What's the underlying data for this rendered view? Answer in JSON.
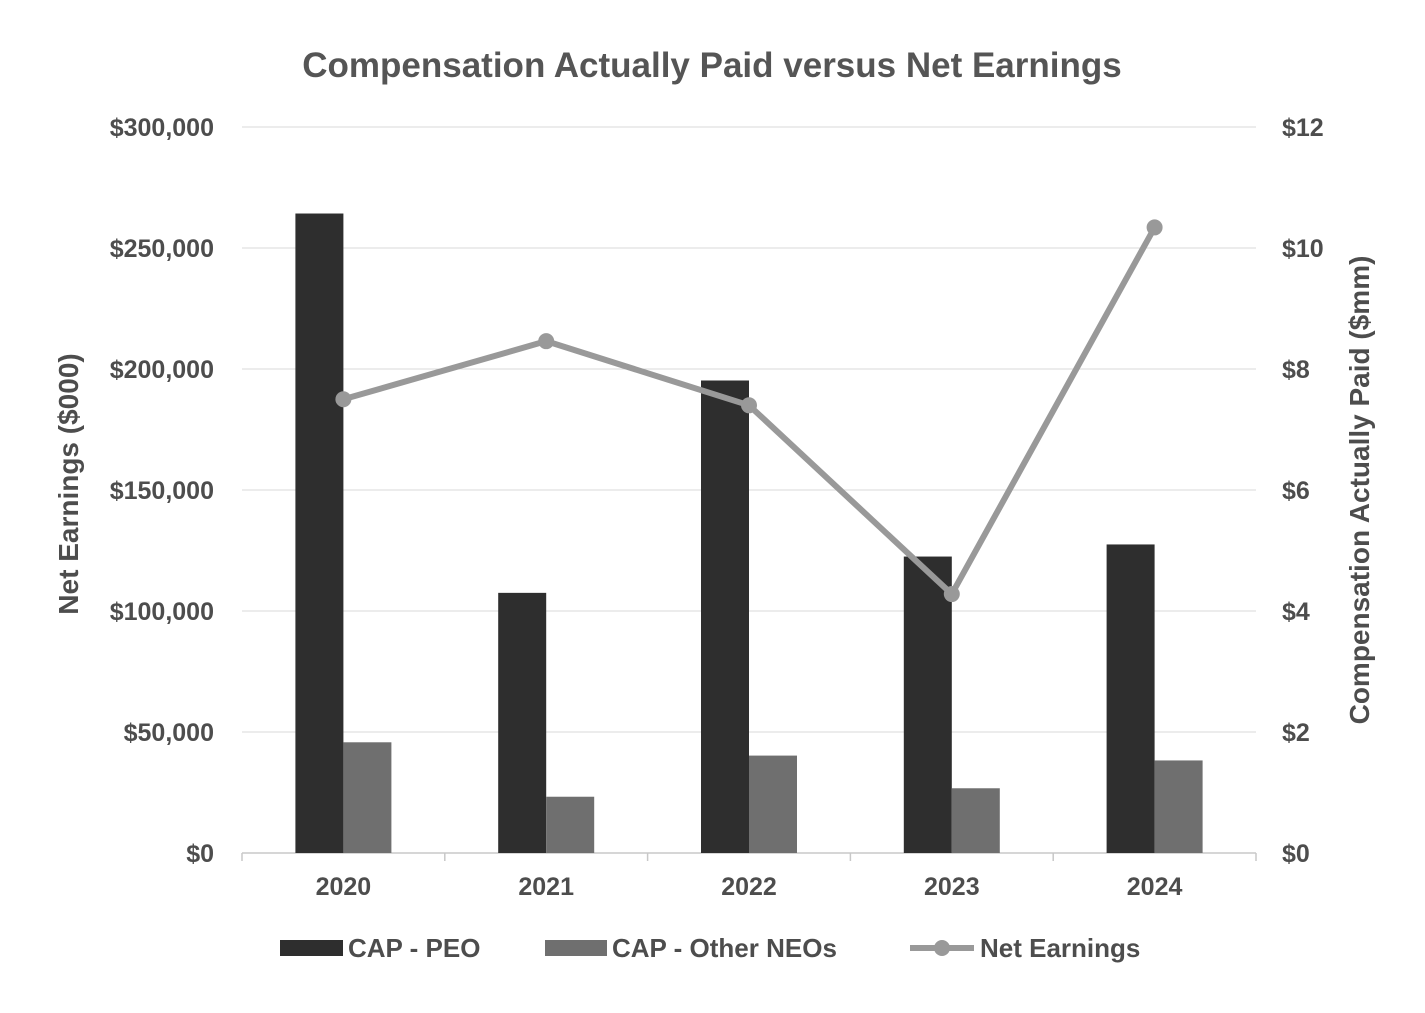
{
  "chart_data": {
    "type": "bar",
    "title": "Compensation Actually Paid versus Net Earnings",
    "categories": [
      "2020",
      "2021",
      "2022",
      "2023",
      "2024"
    ],
    "ylabel_left": "Net Earnings ($000)",
    "ylabel_right": "Compensation Actually Paid ($mm)",
    "ylim_left": [
      0,
      300000
    ],
    "ylim_right": [
      0,
      12
    ],
    "left_ticks": [
      "$0",
      "$50,000",
      "$100,000",
      "$150,000",
      "$200,000",
      "$250,000",
      "$300,000"
    ],
    "right_ticks": [
      "$0",
      "$2",
      "$4",
      "$6",
      "$8",
      "$10",
      "$12"
    ],
    "grid": true,
    "legend_position": "bottom",
    "series": [
      {
        "name": "CAP - PEO",
        "type": "bar",
        "axis": "right",
        "color": "#2e2e2e",
        "values": [
          10.57,
          4.3,
          7.81,
          4.9,
          5.1
        ]
      },
      {
        "name": "CAP - Other NEOs",
        "type": "bar",
        "axis": "right",
        "color": "#6f6f6f",
        "values": [
          1.83,
          0.93,
          1.61,
          1.07,
          1.53
        ]
      },
      {
        "name": "Net Earnings",
        "type": "line",
        "axis": "left",
        "color": "#999999",
        "values": [
          187500,
          211500,
          185000,
          107000,
          258500
        ]
      }
    ]
  }
}
